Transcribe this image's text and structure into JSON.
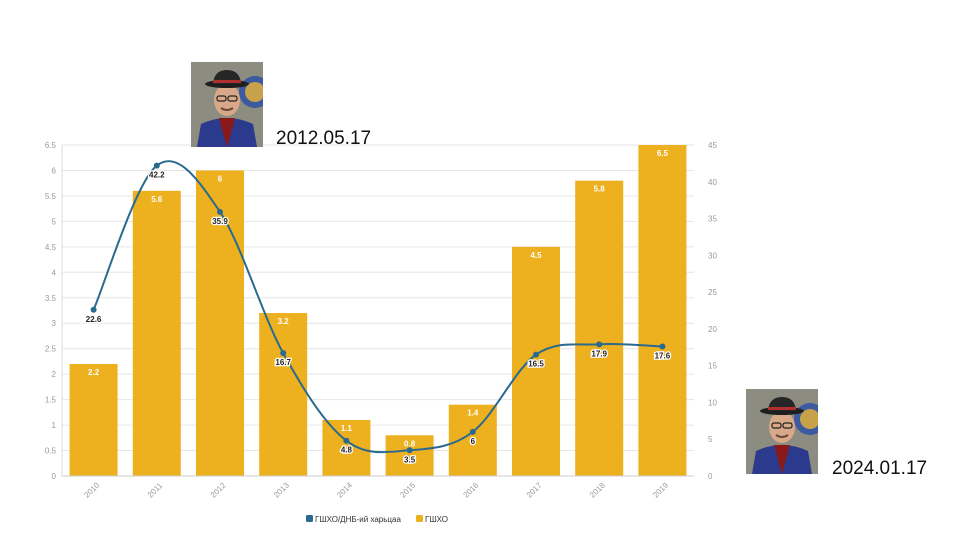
{
  "chart_data": {
    "type": "bar+line",
    "categories": [
      "2010",
      "2011",
      "2012",
      "2013",
      "2014",
      "2015",
      "2016",
      "2017",
      "2018",
      "2019"
    ],
    "series": [
      {
        "name": "ГШХО",
        "type": "bar",
        "axis": "left",
        "color": "#EDB01F",
        "values": [
          2.2,
          5.6,
          6,
          3.2,
          1.1,
          0.8,
          1.4,
          4.5,
          5.8,
          6.5
        ]
      },
      {
        "name": "ГШХО/ДНБ-ий харьцаа",
        "type": "line",
        "axis": "right",
        "color": "#2A6A8E",
        "values": [
          22.6,
          42.2,
          35.9,
          16.7,
          4.8,
          3.5,
          6,
          16.5,
          17.9,
          17.6
        ]
      }
    ],
    "y_left": {
      "min": 0,
      "max": 6.5,
      "ticks": [
        "0",
        "0.5",
        "1",
        "1.5",
        "2",
        "2.5",
        "3",
        "3.5",
        "4",
        "4.5",
        "5",
        "5.5",
        "6",
        "6.5"
      ]
    },
    "y_right": {
      "min": 0,
      "max": 45,
      "ticks": [
        "0",
        "5",
        "10",
        "15",
        "20",
        "25",
        "30",
        "35",
        "40",
        "45"
      ]
    },
    "grid": true,
    "legend_position": "bottom"
  },
  "annotations": {
    "date_top": "2012.05.17",
    "date_bottom": "2024.01.17"
  },
  "icons": {
    "portrait": "person-portrait-icon"
  }
}
